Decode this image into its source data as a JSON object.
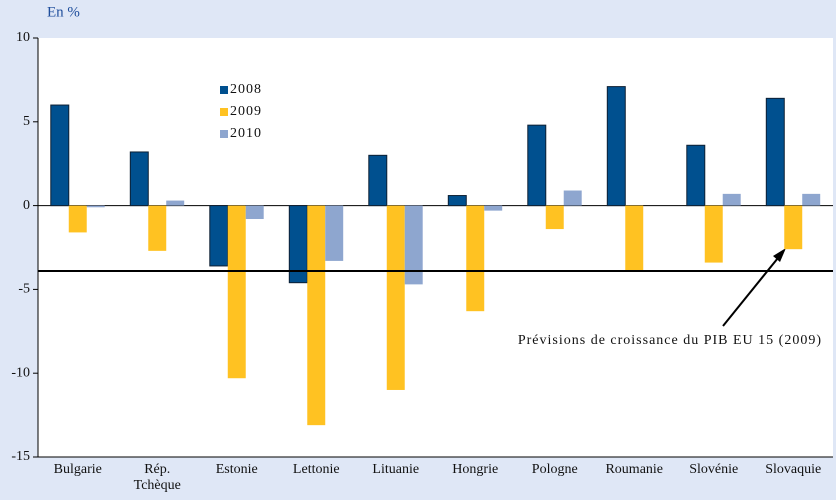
{
  "chart_data": {
    "type": "bar",
    "unit_label": "En %",
    "categories": [
      "Bulgarie",
      "Rép.\nTchèque",
      "Estonie",
      "Lettonie",
      "Lituanie",
      "Hongrie",
      "Pologne",
      "Roumanie",
      "Slovénie",
      "Slovaquie"
    ],
    "series": [
      {
        "name": "2008",
        "color": "#00508f",
        "values": [
          6.0,
          3.2,
          -3.6,
          -4.6,
          3.0,
          0.6,
          4.8,
          7.1,
          3.6,
          6.4
        ]
      },
      {
        "name": "2009",
        "color": "#ffc222",
        "values": [
          -1.6,
          -2.7,
          -10.3,
          -13.1,
          -11.0,
          -6.3,
          -1.4,
          -3.9,
          -3.4,
          -2.6
        ]
      },
      {
        "name": "2010",
        "color": "#8ea6cf",
        "values": [
          -0.1,
          0.3,
          -0.8,
          -3.3,
          -4.7,
          -0.3,
          0.9,
          null,
          0.7,
          0.7
        ]
      }
    ],
    "reference_line": {
      "value": -3.9,
      "label": "Prévisions de croissance du PIB EU 15 (2009)"
    },
    "ylim": [
      -15,
      10
    ],
    "yticks": [
      -15,
      -10,
      -5,
      0,
      5,
      10
    ],
    "legend": "upper-left"
  }
}
